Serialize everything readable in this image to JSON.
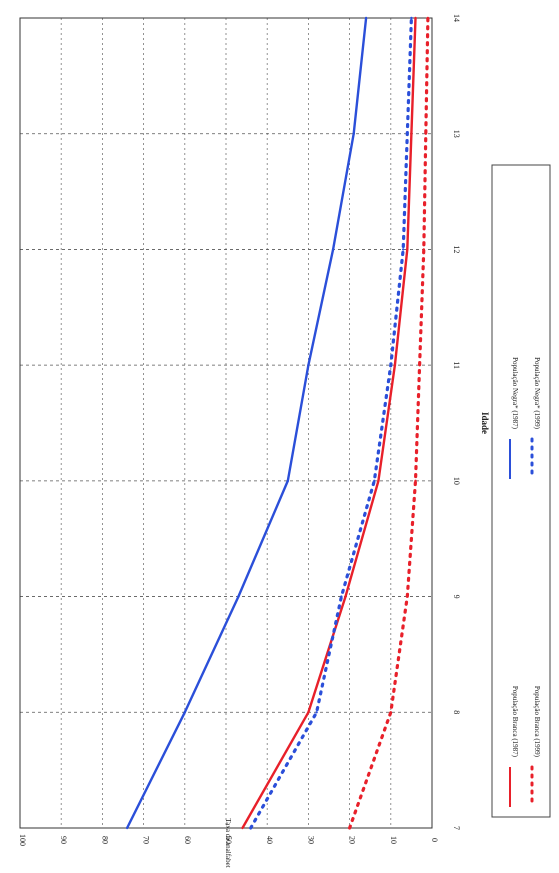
{
  "chart_data": {
    "type": "line",
    "orientation": "rotated-90-clockwise",
    "xlabel": "Idade",
    "ylabel": "Taxa de analfabetismo (%)",
    "x": [
      7,
      8,
      9,
      10,
      11,
      12,
      13,
      14
    ],
    "ylim": [
      0,
      100
    ],
    "y_ticks": [
      0,
      10,
      20,
      30,
      40,
      50,
      60,
      70,
      80,
      90,
      100
    ],
    "grid": true,
    "legend_position": "right",
    "series": [
      {
        "name": "População Branca (1987)",
        "color": "#e8202a",
        "style": "solid",
        "values": [
          46,
          30,
          21,
          13,
          9,
          6,
          5,
          4
        ]
      },
      {
        "name": "População Branca (1999)",
        "color": "#e8202a",
        "style": "dotted",
        "values": [
          20,
          10,
          6,
          4,
          3,
          2,
          1.5,
          1
        ]
      },
      {
        "name": "População Negra* (1987)",
        "color": "#2b4fd9",
        "style": "solid",
        "values": [
          74,
          60,
          47,
          35,
          30,
          24,
          19,
          16
        ]
      },
      {
        "name": "População Negra* (1999)",
        "color": "#2b4fd9",
        "style": "dotted",
        "values": [
          44,
          28,
          22,
          14,
          10,
          7,
          6,
          5
        ]
      }
    ]
  }
}
